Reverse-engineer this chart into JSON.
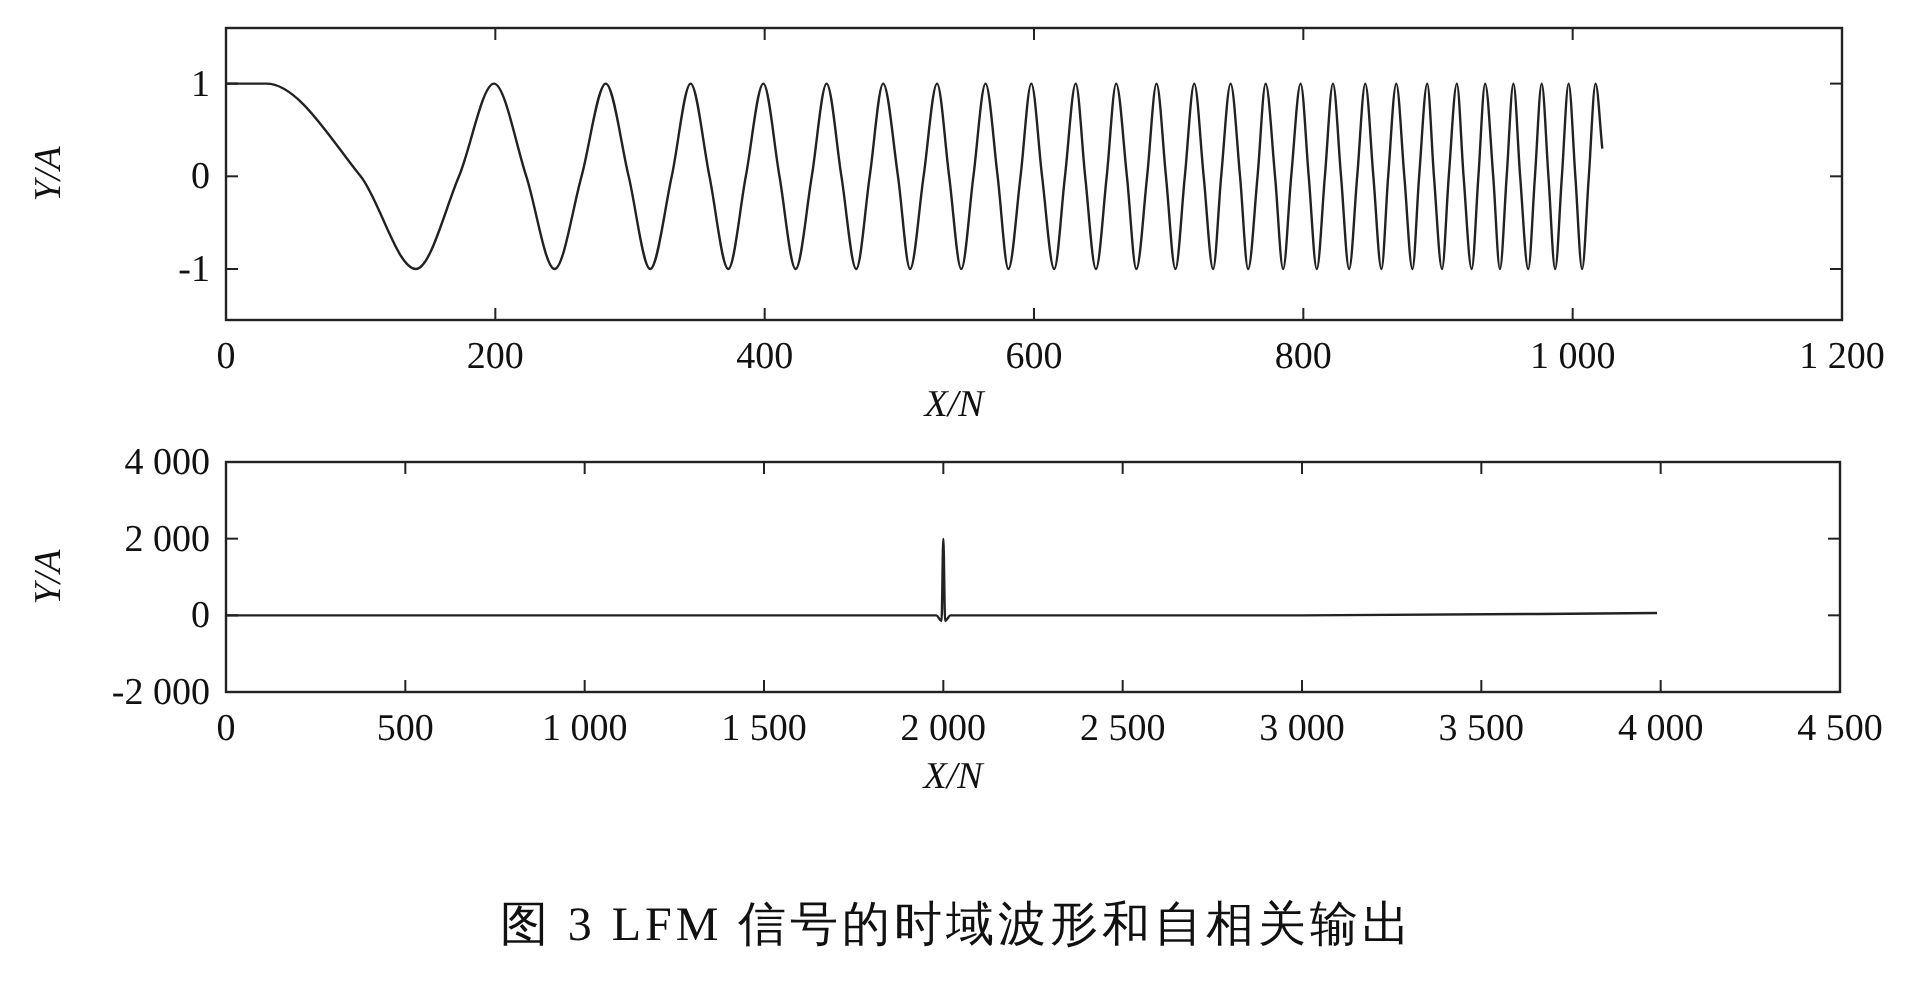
{
  "chart_data": [
    {
      "type": "line",
      "xlabel": "X/N",
      "ylabel": "Y/A",
      "xlim": [
        0,
        1200
      ],
      "ylim": [
        -1.55,
        1.6
      ],
      "xticks": [
        0,
        200,
        400,
        600,
        800,
        {
          "value": 1000,
          "label": "1 000"
        },
        {
          "value": 1200,
          "label": "1 200"
        }
      ],
      "yticks": [
        -1,
        0,
        1
      ],
      "series": [
        {
          "color": "#222222",
          "x": [
            0,
            30,
            100,
            141,
            173,
            199,
            223,
            244,
            264,
            282,
            299,
            315,
            331,
            345,
            359,
            373,
            386,
            399,
            411,
            423,
            435,
            446,
            457,
            468,
            478,
            488,
            499,
            508,
            518,
            528,
            537,
            546,
            555,
            564,
            573,
            581,
            590,
            598,
            606,
            615,
            623,
            631,
            638,
            646,
            654,
            661,
            669,
            676,
            684,
            691,
            698,
            705,
            712,
            719,
            726,
            733,
            739,
            746,
            753,
            759,
            766,
            772,
            779,
            785,
            791,
            798,
            804,
            810,
            816,
            822,
            828,
            834,
            840,
            846,
            852,
            858,
            863,
            869,
            875,
            881,
            886,
            892,
            897,
            903,
            908,
            914,
            919,
            925,
            930,
            935,
            941,
            946,
            951,
            956,
            961,
            967,
            972,
            977,
            982,
            987,
            992,
            997,
            1002,
            1007,
            1012,
            1017,
            1022
          ],
          "values": [
            1,
            1,
            0,
            -1,
            0,
            1,
            0,
            -1,
            0,
            1,
            0,
            -1,
            0,
            1,
            0,
            -1,
            0,
            1,
            0,
            -1,
            0,
            1,
            0,
            -1,
            0,
            1,
            0,
            -1,
            0,
            1,
            0,
            -1,
            0,
            1,
            0,
            -1,
            0,
            1,
            0,
            -1,
            0,
            1,
            0,
            -1,
            0,
            1,
            0,
            -1,
            0,
            1,
            0,
            -1,
            0,
            1,
            0,
            -1,
            0,
            1,
            0,
            -1,
            0,
            1,
            0,
            -1,
            0,
            1,
            0,
            -1,
            0,
            1,
            0,
            -1,
            0,
            1,
            0,
            -1,
            0,
            1,
            0,
            -1,
            0,
            1,
            0,
            -1,
            0,
            1,
            0,
            -1,
            0,
            1,
            0,
            -1,
            0,
            1,
            0,
            -1,
            0,
            1,
            0,
            -1,
            0,
            1,
            0,
            -1,
            0,
            1,
            0.3
          ]
        }
      ]
    },
    {
      "type": "line",
      "xlabel": "X/N",
      "ylabel": "Y/A",
      "xlim": [
        0,
        4500
      ],
      "ylim": [
        -2000,
        4000
      ],
      "xticks": [
        0,
        500,
        {
          "value": 1000,
          "label": "1 000"
        },
        {
          "value": 1500,
          "label": "1 500"
        },
        {
          "value": 2000,
          "label": "2 000"
        },
        {
          "value": 2500,
          "label": "2 500"
        },
        {
          "value": 3000,
          "label": "3 000"
        },
        {
          "value": 3500,
          "label": "3 500"
        },
        {
          "value": 4000,
          "label": "4 000"
        },
        {
          "value": 4500,
          "label": "4 500"
        }
      ],
      "yticks": [
        {
          "value": -2000,
          "label": "-2 000"
        },
        0,
        {
          "value": 2000,
          "label": "2 000"
        },
        {
          "value": 4000,
          "label": "4 000"
        }
      ],
      "series": [
        {
          "color": "#222222",
          "x": [
            0,
            1000,
            1980,
            1995,
            2000,
            2005,
            2020,
            3000,
            3990
          ],
          "values": [
            0,
            0,
            0,
            -150,
            2000,
            -150,
            0,
            0,
            60
          ]
        }
      ],
      "annotations": [
        "图 3 LFM 信号的时域波形和自相关输出"
      ]
    }
  ]
}
